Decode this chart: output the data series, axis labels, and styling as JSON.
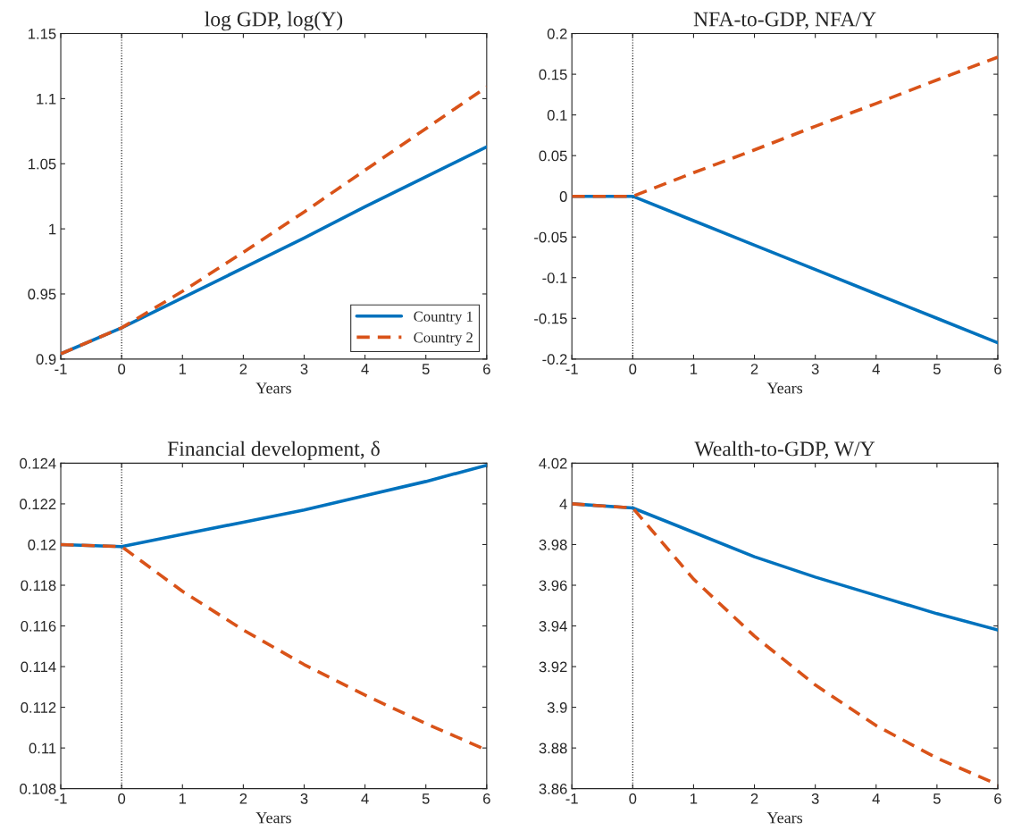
{
  "chart_data": [
    {
      "type": "line",
      "title": "log GDP, log(Y)",
      "xlabel": "Years",
      "x": [
        -1,
        0,
        1,
        2,
        3,
        4,
        5,
        6
      ],
      "xlim": [
        -1,
        6
      ],
      "xticks": [
        -1,
        0,
        1,
        2,
        3,
        4,
        5,
        6
      ],
      "ylim": [
        0.9,
        1.15
      ],
      "yticks": [
        0.9,
        0.95,
        1,
        1.05,
        1.1,
        1.15
      ],
      "grid": false,
      "legend": "bottom right",
      "ref_lines": [
        {
          "axis": "x",
          "value": 0,
          "color": "#000000",
          "line_style": "dotted"
        }
      ],
      "series": [
        {
          "name": "Country 1",
          "color": "#0072bd",
          "line_style": "solid",
          "values": [
            0.904,
            0.924,
            0.947,
            0.97,
            0.993,
            1.017,
            1.04,
            1.063
          ]
        },
        {
          "name": "Country 2",
          "color": "#d95319",
          "line_style": "dashed",
          "values": [
            0.904,
            0.924,
            0.952,
            0.982,
            1.013,
            1.045,
            1.077,
            1.109
          ]
        }
      ]
    },
    {
      "type": "line",
      "title": "NFA-to-GDP, NFA/Y",
      "xlabel": "Years",
      "x": [
        -1,
        0,
        1,
        2,
        3,
        4,
        5,
        6
      ],
      "xlim": [
        -1,
        6
      ],
      "xticks": [
        -1,
        0,
        1,
        2,
        3,
        4,
        5,
        6
      ],
      "ylim": [
        -0.2,
        0.2
      ],
      "yticks": [
        -0.2,
        -0.15,
        -0.1,
        -0.05,
        0,
        0.05,
        0.1,
        0.15,
        0.2
      ],
      "grid": false,
      "legend": false,
      "ref_lines": [
        {
          "axis": "x",
          "value": 0,
          "color": "#000000",
          "line_style": "dotted"
        }
      ],
      "series": [
        {
          "color": "#0072bd",
          "line_style": "solid",
          "values": [
            0,
            0,
            -0.03,
            -0.06,
            -0.09,
            -0.12,
            -0.15,
            -0.18
          ]
        },
        {
          "color": "#d95319",
          "line_style": "dashed",
          "values": [
            0,
            0,
            0.029,
            0.057,
            0.086,
            0.114,
            0.143,
            0.171
          ]
        }
      ]
    },
    {
      "type": "line",
      "title": "Financial development, δ",
      "xlabel": "Years",
      "x": [
        -1,
        0,
        1,
        2,
        3,
        4,
        5,
        6
      ],
      "xlim": [
        -1,
        6
      ],
      "xticks": [
        -1,
        0,
        1,
        2,
        3,
        4,
        5,
        6
      ],
      "ylim": [
        0.108,
        0.124
      ],
      "yticks": [
        0.108,
        0.11,
        0.112,
        0.114,
        0.116,
        0.118,
        0.12,
        0.122,
        0.124
      ],
      "grid": false,
      "legend": false,
      "ref_lines": [
        {
          "axis": "x",
          "value": 0,
          "color": "#000000",
          "line_style": "dotted"
        }
      ],
      "series": [
        {
          "color": "#0072bd",
          "line_style": "solid",
          "values": [
            0.12,
            0.1199,
            0.1205,
            0.1211,
            0.1217,
            0.1224,
            0.1231,
            0.1239
          ]
        },
        {
          "color": "#d95319",
          "line_style": "dashed",
          "values": [
            0.12,
            0.1199,
            0.1177,
            0.1158,
            0.1141,
            0.1126,
            0.1112,
            0.1099
          ]
        }
      ]
    },
    {
      "type": "line",
      "title": "Wealth-to-GDP, W/Y",
      "xlabel": "Years",
      "x": [
        -1,
        0,
        1,
        2,
        3,
        4,
        5,
        6
      ],
      "xlim": [
        -1,
        6
      ],
      "xticks": [
        -1,
        0,
        1,
        2,
        3,
        4,
        5,
        6
      ],
      "ylim": [
        3.86,
        4.02
      ],
      "yticks": [
        3.86,
        3.88,
        3.9,
        3.92,
        3.94,
        3.96,
        3.98,
        4,
        4.02
      ],
      "grid": false,
      "legend": false,
      "ref_lines": [
        {
          "axis": "x",
          "value": 0,
          "color": "#000000",
          "line_style": "dotted"
        }
      ],
      "series": [
        {
          "color": "#0072bd",
          "line_style": "solid",
          "values": [
            4.0,
            3.998,
            3.986,
            3.974,
            3.964,
            3.955,
            3.946,
            3.938
          ]
        },
        {
          "color": "#d95319",
          "line_style": "dashed",
          "values": [
            4.0,
            3.998,
            3.963,
            3.935,
            3.911,
            3.891,
            3.875,
            3.862
          ]
        }
      ]
    }
  ]
}
